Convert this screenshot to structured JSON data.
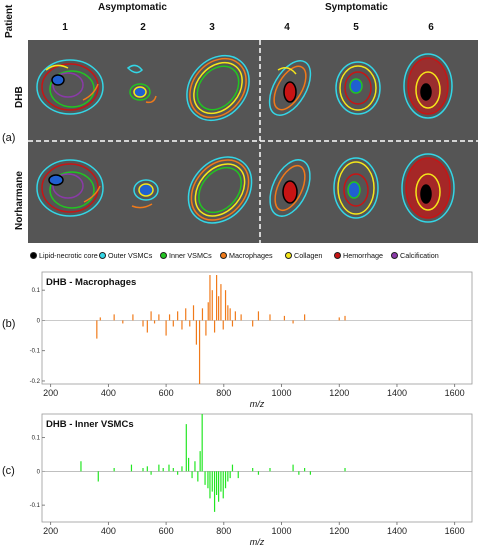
{
  "figure": {
    "headers": {
      "patient": "Patient",
      "asymptomatic": "Asymptomatic",
      "symptomatic": "Symptomatic",
      "patients": [
        "1",
        "2",
        "3",
        "4",
        "5",
        "6"
      ],
      "rows": [
        "DHB",
        "Norharmane"
      ]
    },
    "panel_labels": [
      "(a)",
      "(b)",
      "(c)"
    ],
    "legend": [
      {
        "label": "Lipid-necrotic core",
        "color": "#000000"
      },
      {
        "label": "Outer VSMCs",
        "color": "#33d6e6"
      },
      {
        "label": "Inner VSMCs",
        "color": "#22c422"
      },
      {
        "label": "Macrophages",
        "color": "#f07a1a"
      },
      {
        "label": "Collagen",
        "color": "#f5e61a"
      },
      {
        "label": "Hemorrhage",
        "color": "#c81414"
      },
      {
        "label": "Calcification",
        "color": "#8a3aa8"
      }
    ]
  },
  "chart_data": [
    {
      "type": "bar",
      "title": "DHB - Macrophages",
      "xlabel": "m/z",
      "color": "#f07a1a",
      "xlim": [
        170,
        1660
      ],
      "ylim": [
        -0.21,
        0.16
      ],
      "xticks": [
        200,
        400,
        600,
        800,
        1000,
        1200,
        1400,
        1600
      ],
      "yticks": [
        -0.2,
        -0.1,
        0,
        0.1
      ],
      "peaks": [
        [
          360,
          -0.06
        ],
        [
          372,
          0.01
        ],
        [
          420,
          0.02
        ],
        [
          450,
          -0.01
        ],
        [
          485,
          0.02
        ],
        [
          520,
          -0.02
        ],
        [
          535,
          -0.04
        ],
        [
          548,
          0.03
        ],
        [
          560,
          -0.01
        ],
        [
          575,
          0.02
        ],
        [
          600,
          -0.05
        ],
        [
          612,
          0.02
        ],
        [
          625,
          -0.02
        ],
        [
          640,
          0.03
        ],
        [
          655,
          -0.03
        ],
        [
          668,
          0.04
        ],
        [
          682,
          -0.02
        ],
        [
          695,
          0.05
        ],
        [
          705,
          -0.08
        ],
        [
          716,
          -0.21
        ],
        [
          726,
          0.04
        ],
        [
          738,
          -0.05
        ],
        [
          746,
          0.06
        ],
        [
          752,
          0.15
        ],
        [
          760,
          0.1
        ],
        [
          768,
          -0.04
        ],
        [
          775,
          0.15
        ],
        [
          782,
          0.08
        ],
        [
          790,
          0.12
        ],
        [
          798,
          -0.03
        ],
        [
          806,
          0.1
        ],
        [
          814,
          0.05
        ],
        [
          822,
          0.04
        ],
        [
          830,
          -0.02
        ],
        [
          840,
          0.03
        ],
        [
          860,
          0.02
        ],
        [
          900,
          -0.02
        ],
        [
          920,
          0.03
        ],
        [
          960,
          0.02
        ],
        [
          1010,
          0.015
        ],
        [
          1040,
          -0.01
        ],
        [
          1080,
          0.02
        ],
        [
          1200,
          0.01
        ],
        [
          1220,
          0.015
        ]
      ]
    },
    {
      "type": "bar",
      "title": "DHB - Inner VSMCs",
      "xlabel": "m/z",
      "color": "#22e622",
      "xlim": [
        170,
        1660
      ],
      "ylim": [
        -0.15,
        0.17
      ],
      "xticks": [
        200,
        400,
        600,
        800,
        1000,
        1200,
        1400,
        1600
      ],
      "yticks": [
        -0.1,
        0,
        0.1
      ],
      "peaks": [
        [
          305,
          0.03
        ],
        [
          365,
          -0.03
        ],
        [
          420,
          0.01
        ],
        [
          480,
          0.02
        ],
        [
          520,
          0.01
        ],
        [
          535,
          0.015
        ],
        [
          548,
          -0.01
        ],
        [
          575,
          0.02
        ],
        [
          590,
          0.01
        ],
        [
          610,
          0.02
        ],
        [
          625,
          0.01
        ],
        [
          640,
          -0.01
        ],
        [
          655,
          0.015
        ],
        [
          670,
          0.14
        ],
        [
          678,
          0.04
        ],
        [
          690,
          -0.02
        ],
        [
          700,
          0.03
        ],
        [
          710,
          -0.03
        ],
        [
          718,
          0.06
        ],
        [
          725,
          0.17
        ],
        [
          735,
          -0.04
        ],
        [
          745,
          -0.05
        ],
        [
          752,
          -0.08
        ],
        [
          760,
          -0.06
        ],
        [
          768,
          -0.12
        ],
        [
          775,
          -0.07
        ],
        [
          782,
          -0.09
        ],
        [
          790,
          -0.06
        ],
        [
          798,
          -0.08
        ],
        [
          806,
          -0.05
        ],
        [
          814,
          -0.03
        ],
        [
          822,
          -0.02
        ],
        [
          830,
          0.02
        ],
        [
          850,
          -0.02
        ],
        [
          900,
          0.01
        ],
        [
          920,
          -0.01
        ],
        [
          960,
          0.01
        ],
        [
          1040,
          0.02
        ],
        [
          1060,
          -0.01
        ],
        [
          1080,
          0.01
        ],
        [
          1100,
          -0.01
        ],
        [
          1220,
          0.01
        ]
      ]
    }
  ]
}
